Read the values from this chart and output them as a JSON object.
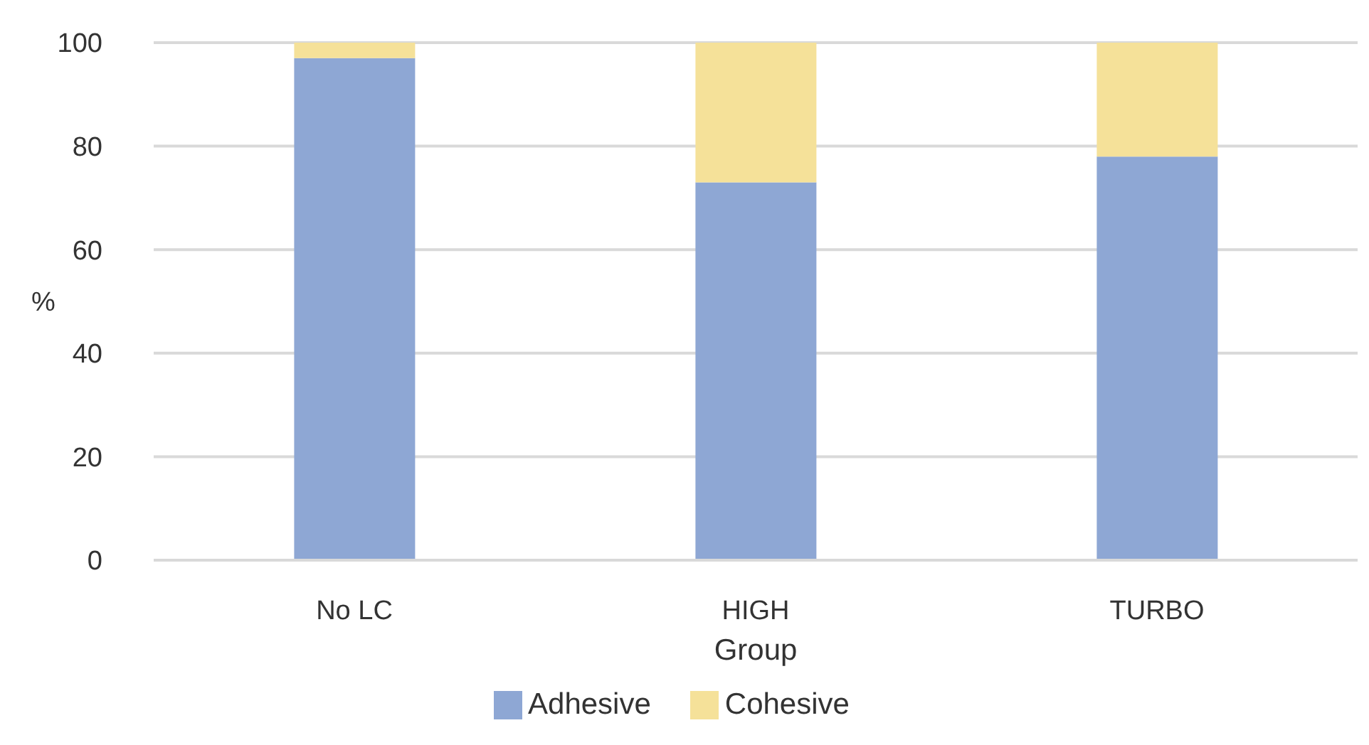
{
  "chart_data": {
    "type": "bar",
    "stacked": true,
    "xlabel": "Group",
    "ylabel": "%",
    "categories": [
      "No LC",
      "HIGH",
      "TURBO"
    ],
    "series": [
      {
        "name": "Adhesive",
        "color": "#8ea7d4",
        "values": [
          97,
          73,
          78
        ]
      },
      {
        "name": "Cohesive",
        "color": "#f5e199",
        "values": [
          3,
          27,
          22
        ]
      }
    ],
    "ylim": [
      0,
      100
    ],
    "yticks": [
      0,
      20,
      40,
      60,
      80,
      100
    ],
    "grid": "y",
    "legend": "bottom"
  }
}
